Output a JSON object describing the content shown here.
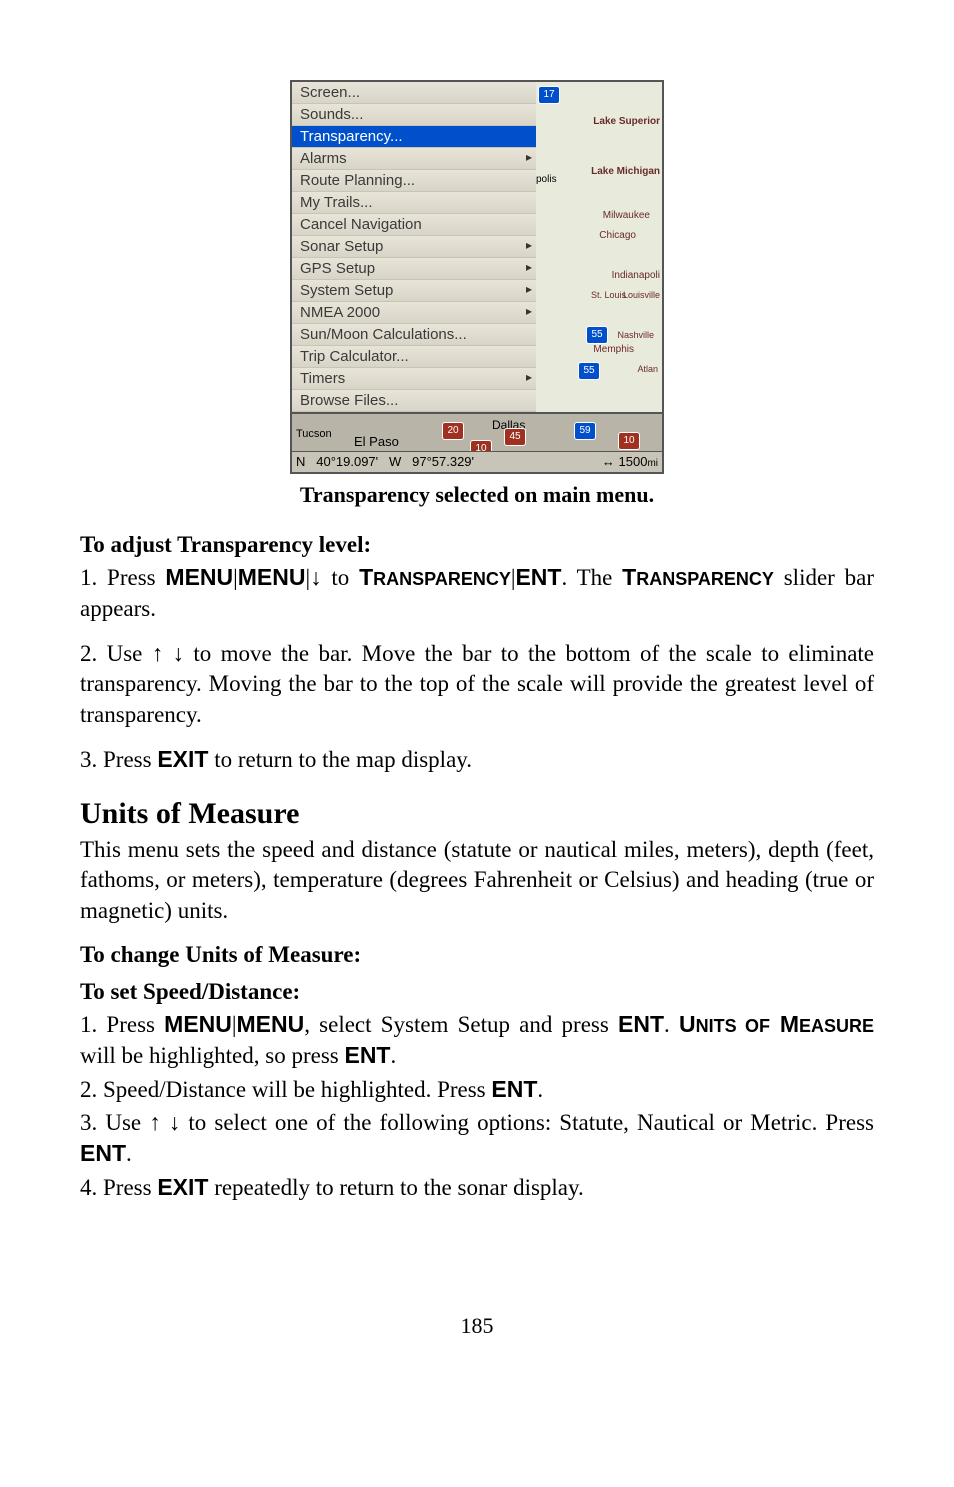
{
  "screenshot": {
    "menu_items": [
      {
        "label": "Screen...",
        "has_submenu": false
      },
      {
        "label": "Sounds...",
        "has_submenu": false
      },
      {
        "label": "Transparency...",
        "has_submenu": false,
        "selected": true
      },
      {
        "label": "Alarms",
        "has_submenu": true
      },
      {
        "label": "Route Planning...",
        "has_submenu": false
      },
      {
        "label": "My Trails...",
        "has_submenu": false
      },
      {
        "label": "Cancel Navigation",
        "has_submenu": false
      },
      {
        "label": "Sonar Setup",
        "has_submenu": true
      },
      {
        "label": "GPS Setup",
        "has_submenu": true
      },
      {
        "label": "System Setup",
        "has_submenu": true
      },
      {
        "label": "NMEA 2000",
        "has_submenu": true
      },
      {
        "label": "Sun/Moon Calculations...",
        "has_submenu": false
      },
      {
        "label": "Trip Calculator...",
        "has_submenu": false
      },
      {
        "label": "Timers",
        "has_submenu": true
      },
      {
        "label": "Browse Files...",
        "has_submenu": false
      }
    ],
    "map_labels": {
      "lake_superior": "Lake Superior",
      "lake_michigan": "Lake Michigan",
      "milwaukee": "Milwaukee",
      "chicago": "Chicago",
      "indianapolis": "Indianapoli",
      "st_louis": "St. Louis",
      "louisville": "Louisville",
      "nashville": "Nashville",
      "memphis": "Memphis",
      "atlanta": "Atlan",
      "polis": "polis",
      "dallas": "Dallas",
      "tucson": "Tucson",
      "el_paso": "El Paso",
      "shield_17": "17",
      "shield_55a": "55",
      "shield_55b": "55",
      "shield_59": "59",
      "shield_20": "20",
      "shield_45": "45",
      "shield_10": "10",
      "shield_10b": "10"
    },
    "status": {
      "n": "N",
      "lat": "40°19.097'",
      "w": "W",
      "lon": "97°57.329'",
      "dist": "1500",
      "unit": "mi",
      "arrow": "↔"
    }
  },
  "caption": "Transparency selected on main menu.",
  "sec1": {
    "heading": "To adjust Transparency level:",
    "p1a": "1. Press ",
    "p1_menu": "MENU",
    "p1_bar": "|",
    "p1_menu2": "MENU",
    "p1_bar2": "|",
    "p1_down": "↓",
    "p1_to": " to ",
    "p1_trans_sc": "T",
    "p1_trans_rest": "RANSPARENCY",
    "p1_bar3": "|",
    "p1_ent": "ENT",
    "p1_b": ". The ",
    "p1_trans2_sc": "T",
    "p1_trans2_rest": "RANSPARENCY",
    "p1_c": " slider bar appears.",
    "p2a": "2. Use ",
    "p2_up": "↑",
    "p2_down": "↓",
    "p2b": " to move the bar. Move the bar to the bottom of the scale to eliminate transparency. Moving the bar to the top of the scale will provide the greatest level of transparency.",
    "p3a": "3. Press ",
    "p3_exit": "EXIT",
    "p3b": " to return to the map display."
  },
  "units": {
    "title": "Units of Measure",
    "intro": "This menu sets the speed and distance (statute or nautical miles, meters), depth (feet, fathoms, or meters), temperature (degrees Fahrenheit or Celsius) and heading (true or magnetic) units.",
    "h_change": "To change Units of Measure:",
    "h_speed": "To set Speed/Distance:",
    "p1a": "1. Press ",
    "p1_menu": "MENU",
    "p1_bar": "|",
    "p1_menu2": "MENU",
    "p1b": ", select System Setup and press ",
    "p1_ent": "ENT",
    "p1c": ". ",
    "p1_units_u": "U",
    "p1_units_rest1": "NITS OF",
    "p1_units_m": " M",
    "p1_units_rest2": "EAS",
    "p1_units_ure": "URE",
    "p1d": " will be highlighted, so press ",
    "p1_ent2": "ENT",
    "p1e": ".",
    "p2a": "2. Speed/Distance will be highlighted. Press ",
    "p2_ent": "ENT",
    "p2b": ".",
    "p3a": "3. Use ",
    "p3_up": "↑",
    "p3_down": "↓",
    "p3b": " to select one of the following options: Statute, Nautical or Metric. Press ",
    "p3_ent": "ENT",
    "p3c": ".",
    "p4a": "4. Press ",
    "p4_exit": "EXIT",
    "p4b": " repeatedly to return to the sonar display."
  },
  "page_number": "185"
}
